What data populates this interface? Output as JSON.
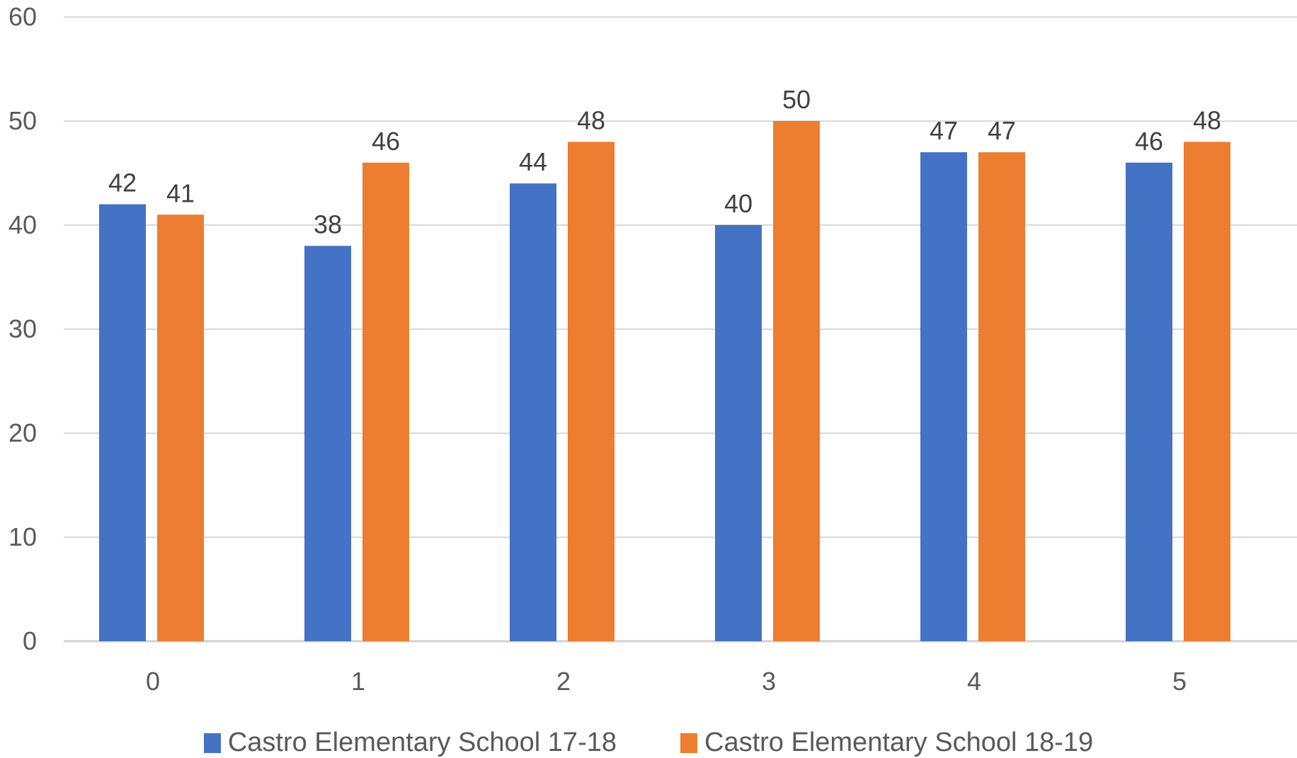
{
  "chart_data": {
    "type": "bar",
    "categories": [
      "0",
      "1",
      "2",
      "3",
      "4",
      "5"
    ],
    "series": [
      {
        "name": "Castro Elementary School 17-18",
        "values": [
          42,
          38,
          44,
          40,
          47,
          46
        ],
        "color": "#4472c4"
      },
      {
        "name": "Castro Elementary School 18-19",
        "values": [
          41,
          46,
          48,
          50,
          47,
          48
        ],
        "color": "#ed7d31"
      }
    ],
    "ylim": [
      0,
      60
    ],
    "yticks": [
      "0",
      "10",
      "20",
      "30",
      "40",
      "50",
      "60"
    ],
    "grid": true,
    "data_labels": true,
    "legend_position": "bottom"
  }
}
